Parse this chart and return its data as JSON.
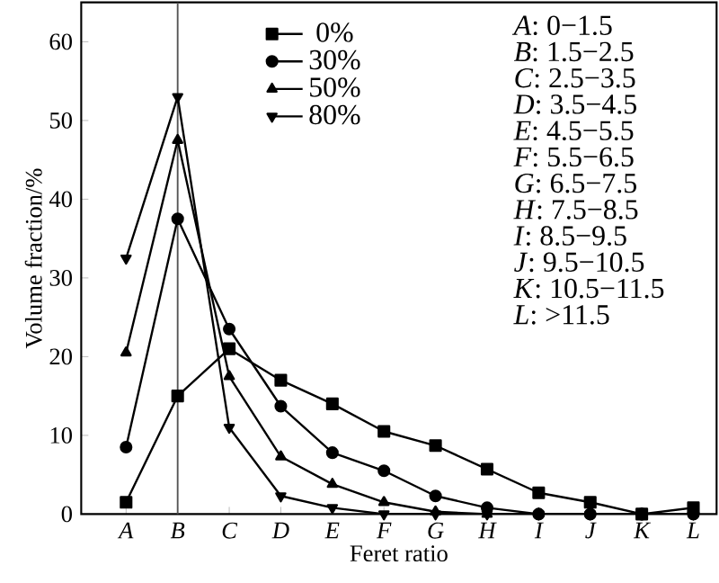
{
  "chart_data": {
    "type": "line",
    "xlabel": "Feret ratio",
    "ylabel": "Volume fraction/%",
    "categories": [
      "A",
      "B",
      "C",
      "D",
      "E",
      "F",
      "G",
      "H",
      "I",
      "J",
      "K",
      "L"
    ],
    "series": [
      {
        "name": "0%",
        "color": "#000000",
        "marker": "square",
        "values": [
          1.5,
          15,
          21,
          17,
          14,
          10.5,
          8.7,
          5.7,
          2.7,
          1.5,
          0,
          0.8
        ]
      },
      {
        "name": "30%",
        "color": "#000000",
        "marker": "circle",
        "values": [
          8.5,
          37.5,
          23.5,
          13.7,
          7.8,
          5.5,
          2.3,
          0.8,
          0,
          0,
          0,
          0
        ]
      },
      {
        "name": "50%",
        "color": "#000000",
        "marker": "triangle",
        "values": [
          20.5,
          47.5,
          17.5,
          7.3,
          3.8,
          1.5,
          0.3,
          0,
          0,
          0,
          0,
          0
        ]
      },
      {
        "name": "80%",
        "color": "#000000",
        "marker": "triangle-down",
        "values": [
          32.5,
          53,
          11,
          2.3,
          0.8,
          0,
          0,
          0,
          0,
          0,
          0,
          0
        ]
      }
    ],
    "ylim": [
      0,
      65
    ],
    "yticks": [
      0,
      10,
      20,
      30,
      40,
      50,
      60
    ],
    "ref_lines": [
      {
        "axis": "x",
        "value": "B",
        "color": "#555555"
      }
    ],
    "legend": "top left",
    "grid": false,
    "line_style": "solid",
    "annotations": [
      "*A*: 0−1.5",
      "*B*: 1.5−2.5",
      "*C*: 2.5−3.5",
      "*D*: 3.5−4.5",
      "*E*: 4.5−5.5",
      "*F*: 5.5−6.5",
      "*G*: 6.5−7.5",
      "*H*: 7.5−8.5",
      "*I*: 8.5−9.5",
      "*J*: 9.5−10.5",
      "*K*: 10.5−11.5",
      "*L*: >11.5"
    ]
  }
}
